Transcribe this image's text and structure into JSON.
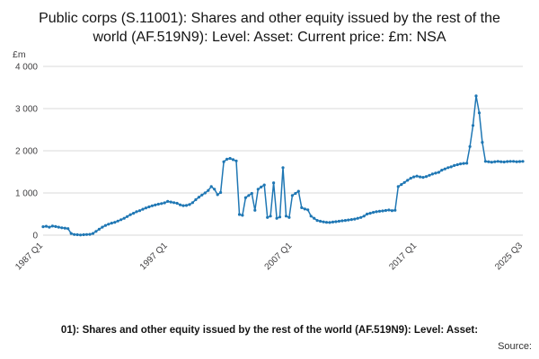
{
  "header": {
    "title": "Public corps (S.11001): Shares and other equity issued by the rest of the world (AF.519N9): Level: Asset: Current price: £m: NSA"
  },
  "footer": {
    "caption": "01): Shares and other equity issued by the rest of the world (AF.519N9): Level: Asset:",
    "source_label": "Source:"
  },
  "chart_data": {
    "type": "line",
    "title": "Public corps (S.11001): Shares and other equity issued by the rest of the world (AF.519N9): Level: Asset: Current price: £m: NSA",
    "ylabel": "£m",
    "xlabel": "",
    "ylim": [
      0,
      4000
    ],
    "yticks": [
      0,
      1000,
      2000,
      3000,
      4000
    ],
    "ytick_labels": [
      "0",
      "1 000",
      "2 000",
      "3 000",
      "4 000"
    ],
    "xtick_labels": [
      "1987 Q1",
      "1997 Q1",
      "2007 Q1",
      "2017 Q1",
      "2025 Q3"
    ],
    "xtick_indices": [
      0,
      40,
      80,
      120,
      154
    ],
    "x_start": "1987 Q1",
    "x_end": "2025 Q3",
    "frequency": "quarterly",
    "grid": true,
    "legend": "none",
    "line_color": "#1f77b4",
    "grid_color": "#d9d9d9",
    "values": [
      200,
      210,
      190,
      215,
      205,
      190,
      175,
      165,
      155,
      40,
      15,
      10,
      5,
      10,
      15,
      20,
      40,
      90,
      140,
      190,
      230,
      260,
      285,
      305,
      335,
      365,
      400,
      440,
      485,
      520,
      555,
      580,
      615,
      645,
      670,
      695,
      715,
      735,
      750,
      765,
      800,
      785,
      770,
      755,
      720,
      700,
      705,
      725,
      770,
      840,
      900,
      950,
      1000,
      1060,
      1150,
      1090,
      960,
      1010,
      1740,
      1800,
      1820,
      1790,
      1760,
      490,
      470,
      890,
      940,
      990,
      590,
      1090,
      1140,
      1190,
      420,
      450,
      1240,
      400,
      430,
      1600,
      450,
      420,
      940,
      990,
      1040,
      650,
      620,
      600,
      450,
      400,
      350,
      330,
      315,
      305,
      300,
      310,
      320,
      330,
      340,
      350,
      360,
      370,
      380,
      400,
      420,
      450,
      500,
      520,
      540,
      555,
      565,
      575,
      585,
      595,
      580,
      590,
      1150,
      1200,
      1250,
      1300,
      1350,
      1380,
      1400,
      1380,
      1370,
      1390,
      1420,
      1450,
      1470,
      1490,
      1540,
      1570,
      1600,
      1620,
      1650,
      1670,
      1690,
      1700,
      1705,
      2100,
      2600,
      3300,
      2900,
      2200,
      1750,
      1740,
      1730,
      1740,
      1750,
      1740,
      1735,
      1745,
      1750,
      1750,
      1740,
      1745,
      1750
    ]
  }
}
